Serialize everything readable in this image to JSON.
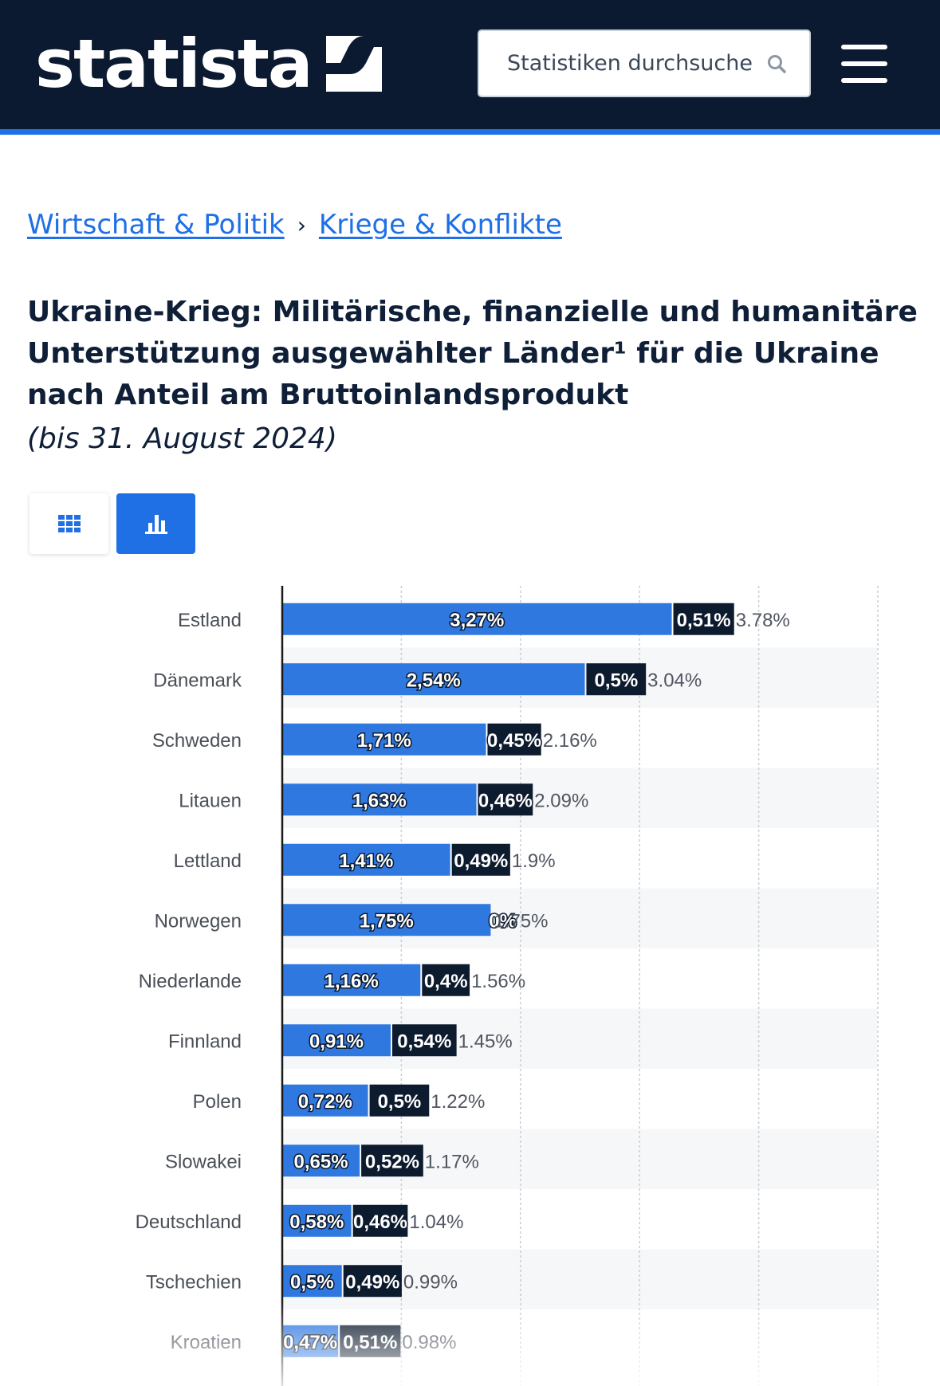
{
  "header": {
    "logo_text": "statista",
    "search_placeholder": "Statistiken durchsuchen"
  },
  "breadcrumb": {
    "items": [
      "Wirtschaft & Politik",
      "Kriege & Konflikte"
    ],
    "separator": "›"
  },
  "title": "Ukraine-Krieg: Militärische, finanzielle und humanitäre Unterstützung ausgewählter Länder¹ für die Ukraine nach Anteil am Bruttoinlandsprodukt",
  "subtitle": "(bis 31. August 2024)",
  "view_toggle": {
    "active": "chart",
    "icons": [
      "grid-icon",
      "bar-chart-icon"
    ]
  },
  "colors": {
    "navy": "#0b1a31",
    "blue": "#1f6fe5",
    "bar_blue": "#2f78e0",
    "bar_dark": "#0d1b2e"
  },
  "chart_data": {
    "type": "bar",
    "orientation": "horizontal",
    "stacked": true,
    "categories": [
      "Estland",
      "Dänemark",
      "Schweden",
      "Litauen",
      "Lettland",
      "Norwegen",
      "Niederlande",
      "Finnland",
      "Polen",
      "Slowakei",
      "Deutschland",
      "Tschechien",
      "Kroatien"
    ],
    "series": [
      {
        "values": [
          3.27,
          2.54,
          1.71,
          1.63,
          1.41,
          1.75,
          1.16,
          0.91,
          0.72,
          0.65,
          0.58,
          0.5,
          0.47
        ],
        "labels": [
          "3,27%",
          "2,54%",
          "1,71%",
          "1,63%",
          "1,41%",
          "1,75%",
          "1,16%",
          "0,91%",
          "0,72%",
          "0,65%",
          "0,58%",
          "0,5%",
          "0,47%"
        ]
      },
      {
        "values": [
          0.51,
          0.5,
          0.45,
          0.46,
          0.49,
          0,
          0.4,
          0.54,
          0.5,
          0.52,
          0.46,
          0.49,
          0.51
        ],
        "labels": [
          "0,51%",
          "0,5%",
          "0,45%",
          "0,46%",
          "0,49%",
          "0%",
          "0,4%",
          "0,54%",
          "0,5%",
          "0,52%",
          "0,46%",
          "0,49%",
          "0,51%"
        ]
      }
    ],
    "totals": [
      "3.78%",
      "3.04%",
      "2.16%",
      "2.09%",
      "1.9%",
      "1.75%",
      "1.56%",
      "1.45%",
      "1.22%",
      "1.17%",
      "1.04%",
      "0.99%",
      "0.98%"
    ],
    "xlim": [
      0,
      5
    ],
    "grid": true
  }
}
